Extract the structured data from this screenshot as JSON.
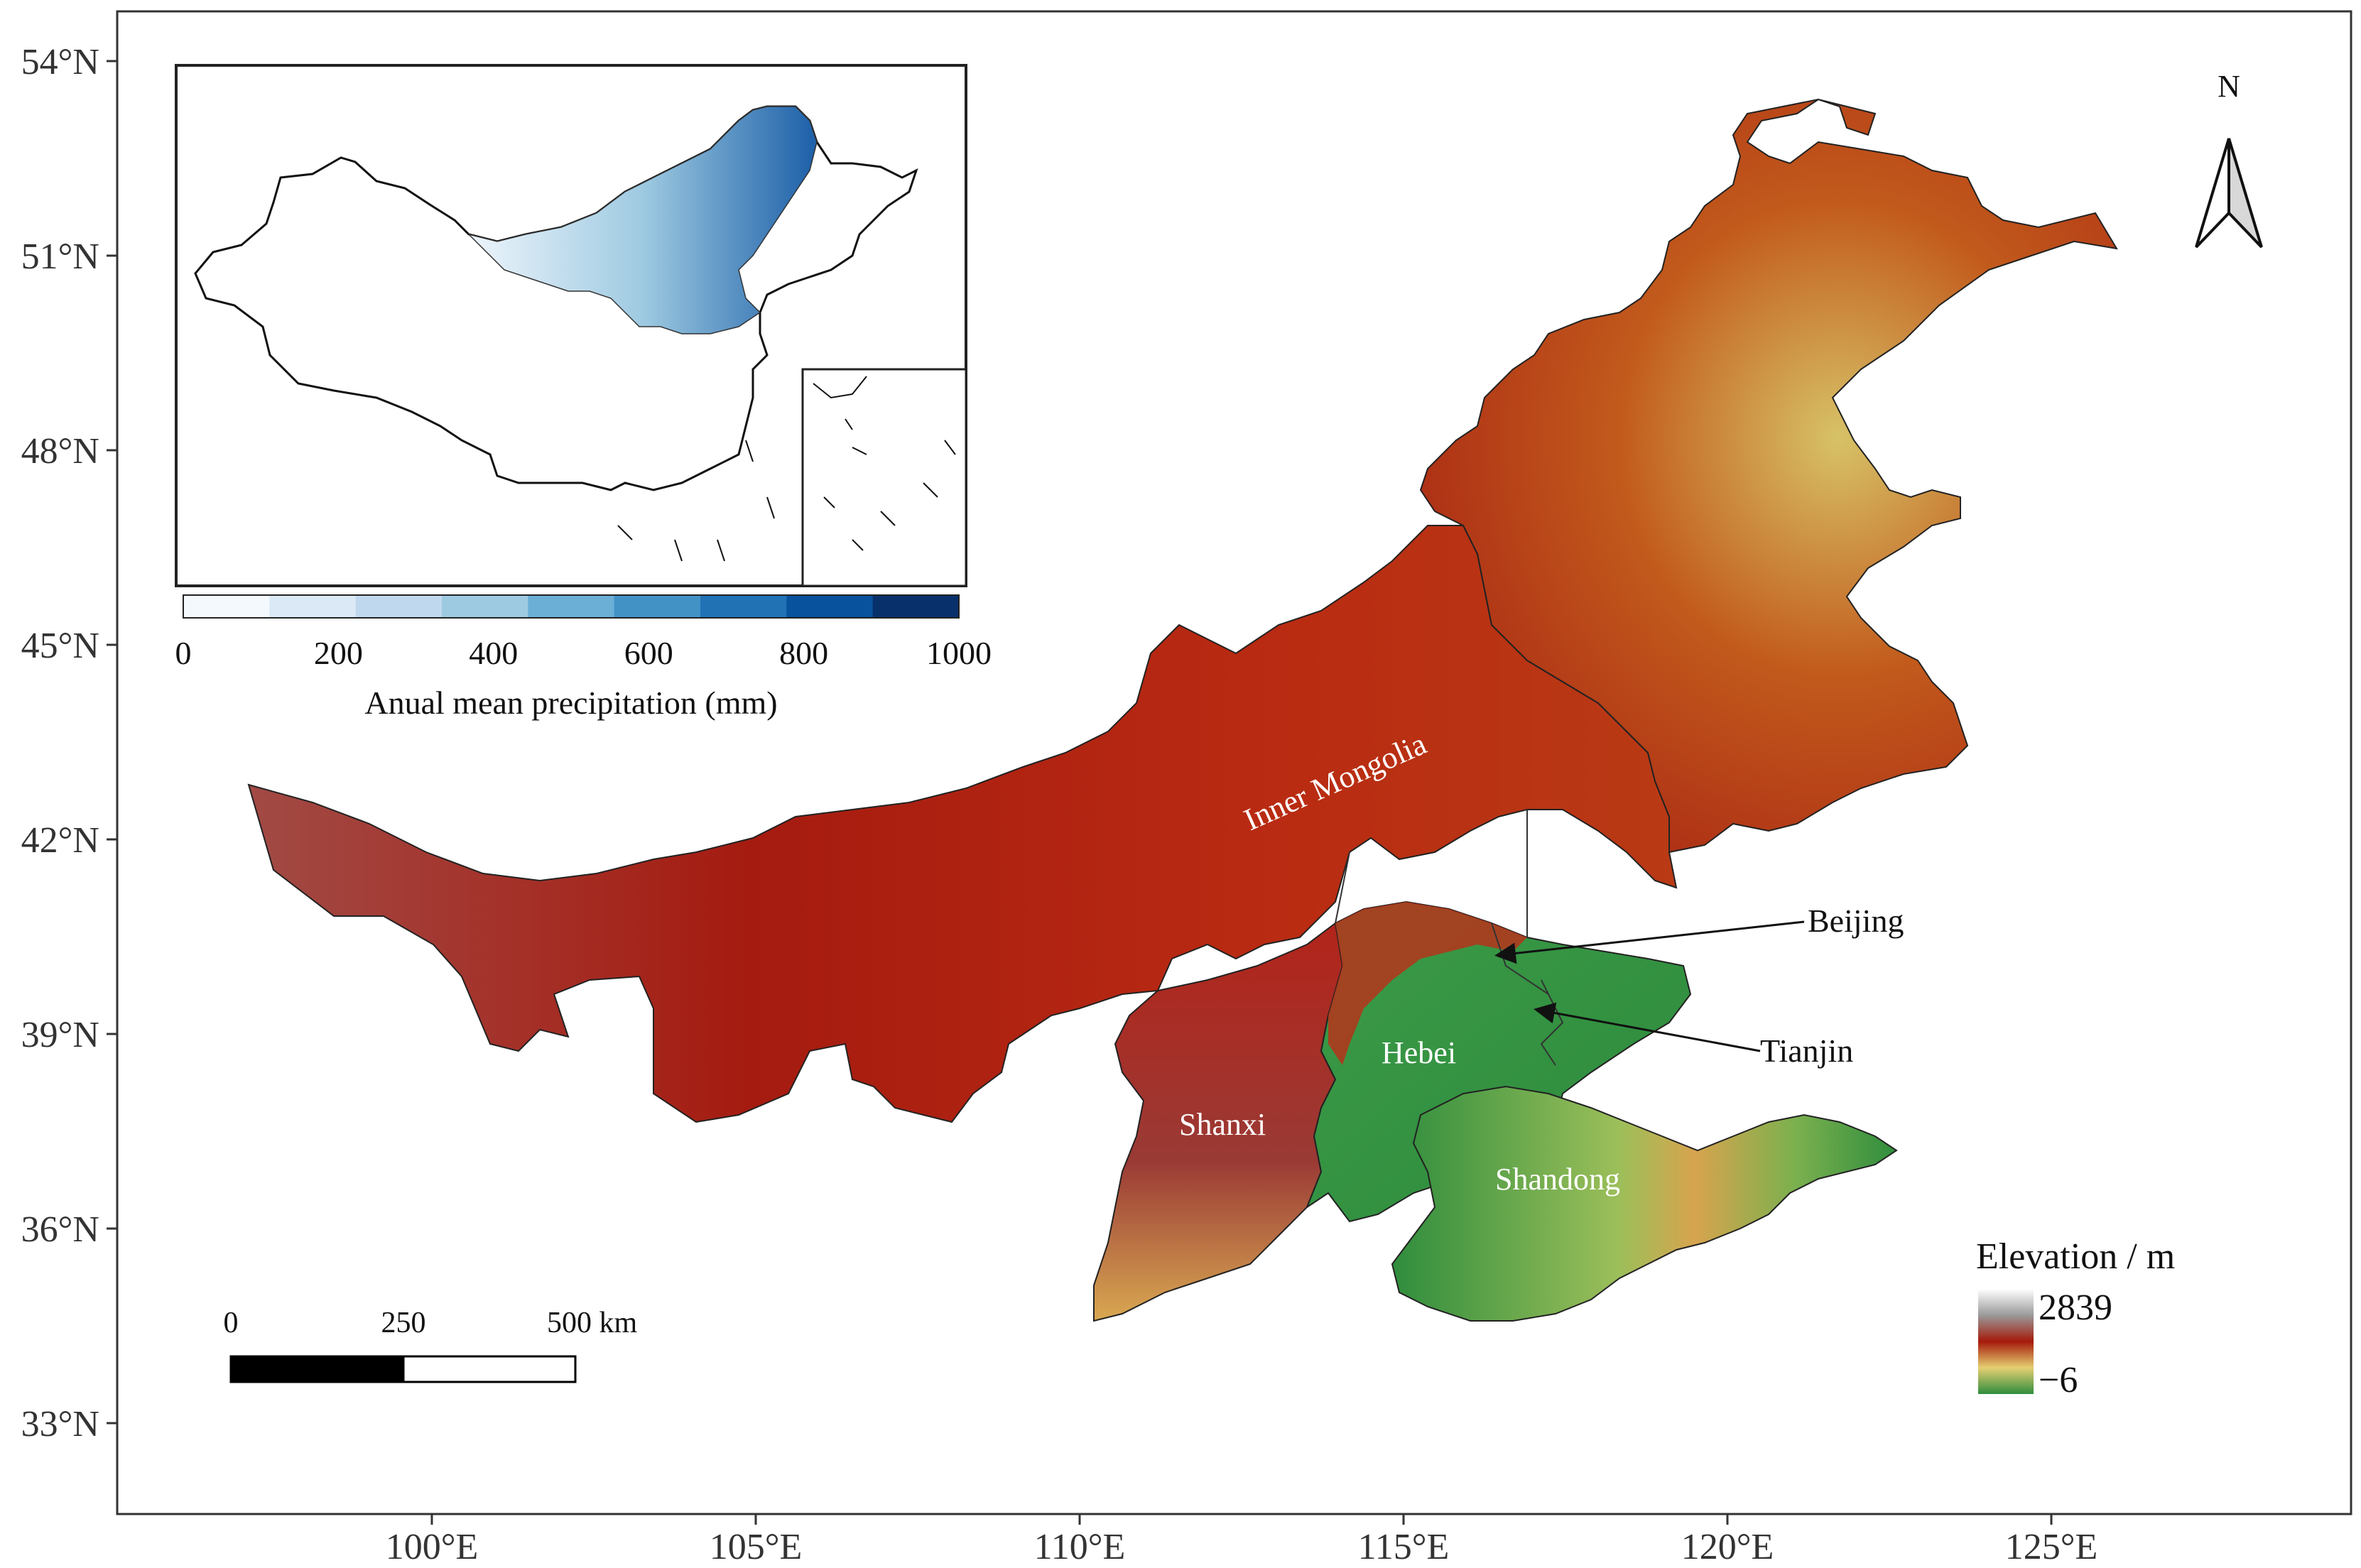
{
  "axes": {
    "latitude_ticks": [
      "54°N",
      "51°N",
      "48°N",
      "45°N",
      "42°N",
      "39°N",
      "36°N",
      "33°N"
    ],
    "longitude_ticks": [
      "100°E",
      "105°E",
      "110°E",
      "115°E",
      "120°E",
      "125°E"
    ]
  },
  "regions": {
    "inner_mongolia": "Inner Mongolia",
    "hebei": "Hebei",
    "shanxi": "Shanxi",
    "shandong": "Shandong"
  },
  "cities": {
    "beijing": "Beijing",
    "tianjin": "Tianjin"
  },
  "north_arrow": {
    "label": "N"
  },
  "elevation_legend": {
    "title": "Elevation / m",
    "max_label": "2839",
    "min_label": "−6"
  },
  "inset": {
    "colorbar_ticks": [
      "0",
      "200",
      "400",
      "600",
      "800",
      "1000"
    ],
    "colorbar_title": "Anual mean precipitation (mm)",
    "colors": [
      "#f4f9fe",
      "#dbe9f6",
      "#c0d8ee",
      "#9ecae1",
      "#6baed6",
      "#4292c6",
      "#2171b5",
      "#08519c",
      "#08306b"
    ]
  },
  "scale_bar": {
    "labels": [
      "0",
      "250",
      "500 km"
    ]
  },
  "colors": {
    "elevation_high": "#ffffff",
    "elevation_mid": "#a41a0c",
    "elevation_low_yellow": "#e8d27a",
    "elevation_lowest": "#2e8a3c"
  }
}
